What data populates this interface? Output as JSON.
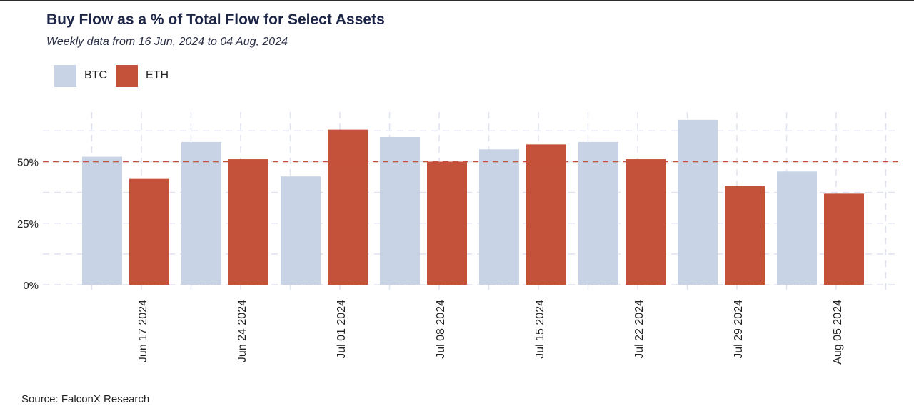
{
  "chart_data": {
    "type": "bar",
    "title": "Buy Flow as a % of Total Flow for Select Assets",
    "subtitle": "Weekly data from 16 Jun, 2024 to 04 Aug, 2024",
    "xlabel": "",
    "ylabel": "",
    "categories": [
      "Jun 17 2024",
      "Jun 24 2024",
      "Jul 01 2024",
      "Jul 08 2024",
      "Jul 15 2024",
      "Jul 22 2024",
      "Jul 29 2024",
      "Aug 05 2024"
    ],
    "series": [
      {
        "name": "BTC",
        "color": "#c8d3e5",
        "values": [
          52,
          58,
          44,
          60,
          55,
          58,
          67,
          46
        ]
      },
      {
        "name": "ETH",
        "color": "#c4513a",
        "values": [
          43,
          51,
          63,
          50,
          57,
          51,
          40,
          37
        ]
      }
    ],
    "yticks": [
      0,
      25,
      50
    ],
    "ytick_labels": [
      "0%",
      "25%",
      "50%"
    ],
    "ylim": [
      0,
      70
    ],
    "reference_line": {
      "value": 50,
      "style": "dashed",
      "color": "#c4513a"
    },
    "grid": true,
    "legend_position": "top-left",
    "source": "Source: FalconX Research"
  }
}
